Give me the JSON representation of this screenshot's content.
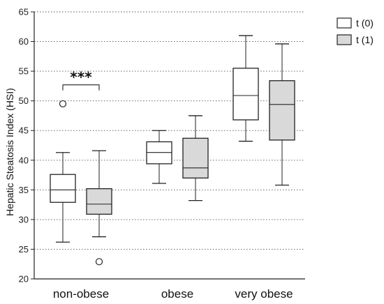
{
  "chart_data": {
    "type": "box",
    "ylabel": "Hepatic Steatosis Index (HSI)",
    "ylim": [
      20,
      65
    ],
    "yticks": [
      20,
      25,
      30,
      35,
      40,
      45,
      50,
      55,
      60,
      65
    ],
    "ytick_labels": [
      "20",
      "25",
      "30",
      "35",
      "40",
      "45",
      "50",
      "55",
      "60",
      "65"
    ],
    "grid": "horizontal dotted",
    "legend_position": "top-right",
    "categories": [
      "non-obese",
      "obese",
      "very obese"
    ],
    "series": [
      {
        "name": "t (0)",
        "fill": "#ffffff",
        "boxes": [
          {
            "category": "non-obese",
            "whisker_low": 26.2,
            "q1": 32.9,
            "median": 35.0,
            "q3": 37.6,
            "whisker_high": 41.3,
            "outliers": [
              49.5
            ]
          },
          {
            "category": "obese",
            "whisker_low": 36.1,
            "q1": 39.4,
            "median": 41.3,
            "q3": 43.1,
            "whisker_high": 45.0,
            "outliers": []
          },
          {
            "category": "very obese",
            "whisker_low": 43.2,
            "q1": 46.8,
            "median": 50.9,
            "q3": 55.5,
            "whisker_high": 61.0,
            "outliers": []
          }
        ]
      },
      {
        "name": "t (1)",
        "fill": "#d9d9d9",
        "boxes": [
          {
            "category": "non-obese",
            "whisker_low": 27.1,
            "q1": 30.9,
            "median": 32.6,
            "q3": 35.2,
            "whisker_high": 41.6,
            "outliers": [
              22.9
            ]
          },
          {
            "category": "obese",
            "whisker_low": 33.2,
            "q1": 37.0,
            "median": 38.7,
            "q3": 43.7,
            "whisker_high": 47.5,
            "outliers": []
          },
          {
            "category": "very obese",
            "whisker_low": 35.8,
            "q1": 43.4,
            "median": 49.4,
            "q3": 53.4,
            "whisker_high": 59.6,
            "outliers": []
          }
        ]
      }
    ],
    "annotations": [
      {
        "text": "***",
        "category": "non-obese",
        "between": [
          "t (0)",
          "t (1)"
        ],
        "y": 52.7
      }
    ]
  }
}
